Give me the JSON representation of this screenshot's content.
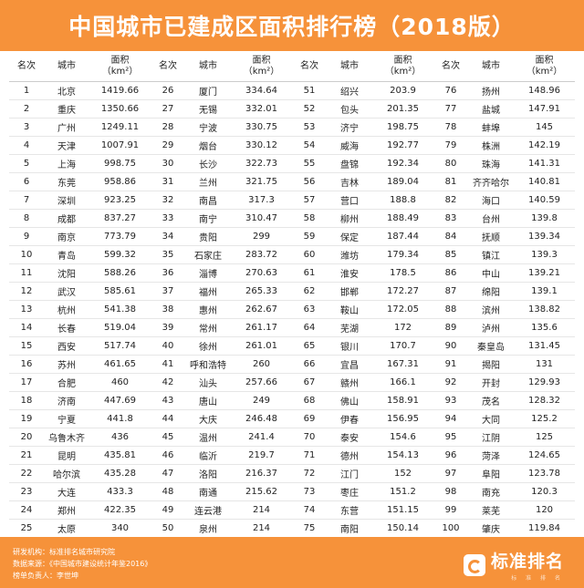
{
  "header": {
    "title": "中国城市已建成区面积排行榜（2018版）"
  },
  "table": {
    "headers": [
      "名次",
      "城市",
      "面积\n（km²）"
    ],
    "columns": [
      {
        "rows": [
          [
            "1",
            "北京",
            "1419.66"
          ],
          [
            "2",
            "重庆",
            "1350.66"
          ],
          [
            "3",
            "广州",
            "1249.11"
          ],
          [
            "4",
            "天津",
            "1007.91"
          ],
          [
            "5",
            "上海",
            "998.75"
          ],
          [
            "6",
            "东莞",
            "958.86"
          ],
          [
            "7",
            "深圳",
            "923.25"
          ],
          [
            "8",
            "成都",
            "837.27"
          ],
          [
            "9",
            "南京",
            "773.79"
          ],
          [
            "10",
            "青岛",
            "599.32"
          ],
          [
            "11",
            "沈阳",
            "588.26"
          ],
          [
            "12",
            "武汉",
            "585.61"
          ],
          [
            "13",
            "杭州",
            "541.38"
          ],
          [
            "14",
            "长春",
            "519.04"
          ],
          [
            "15",
            "西安",
            "517.74"
          ],
          [
            "16",
            "苏州",
            "461.65"
          ],
          [
            "17",
            "合肥",
            "460"
          ],
          [
            "18",
            "济南",
            "447.69"
          ],
          [
            "19",
            "宁夏",
            "441.8"
          ],
          [
            "20",
            "乌鲁木齐",
            "436"
          ],
          [
            "21",
            "昆明",
            "435.81"
          ],
          [
            "22",
            "哈尔滨",
            "435.28"
          ],
          [
            "23",
            "大连",
            "433.3"
          ],
          [
            "24",
            "郑州",
            "422.35"
          ],
          [
            "25",
            "太原",
            "340"
          ]
        ]
      },
      {
        "rows": [
          [
            "26",
            "厦门",
            "334.64"
          ],
          [
            "27",
            "无锡",
            "332.01"
          ],
          [
            "28",
            "宁波",
            "330.75"
          ],
          [
            "29",
            "烟台",
            "330.12"
          ],
          [
            "30",
            "长沙",
            "322.73"
          ],
          [
            "31",
            "兰州",
            "321.75"
          ],
          [
            "32",
            "南昌",
            "317.3"
          ],
          [
            "33",
            "南宁",
            "310.47"
          ],
          [
            "34",
            "贵阳",
            "299"
          ],
          [
            "35",
            "石家庄",
            "283.72"
          ],
          [
            "36",
            "淄博",
            "270.63"
          ],
          [
            "37",
            "福州",
            "265.33"
          ],
          [
            "38",
            "惠州",
            "262.67"
          ],
          [
            "39",
            "常州",
            "261.17"
          ],
          [
            "40",
            "徐州",
            "261.01"
          ],
          [
            "41",
            "呼和浩特",
            "260"
          ],
          [
            "42",
            "汕头",
            "257.66"
          ],
          [
            "43",
            "唐山",
            "249"
          ],
          [
            "44",
            "大庆",
            "246.48"
          ],
          [
            "45",
            "温州",
            "241.4"
          ],
          [
            "46",
            "临沂",
            "219.7"
          ],
          [
            "47",
            "洛阳",
            "216.37"
          ],
          [
            "48",
            "南通",
            "215.62"
          ],
          [
            "49",
            "连云港",
            "214"
          ],
          [
            "50",
            "泉州",
            "214"
          ]
        ]
      },
      {
        "rows": [
          [
            "51",
            "绍兴",
            "203.9"
          ],
          [
            "52",
            "包头",
            "201.35"
          ],
          [
            "53",
            "济宁",
            "198.75"
          ],
          [
            "54",
            "威海",
            "192.77"
          ],
          [
            "55",
            "盘锦",
            "192.34"
          ],
          [
            "56",
            "吉林",
            "189.04"
          ],
          [
            "57",
            "营口",
            "188.8"
          ],
          [
            "58",
            "柳州",
            "188.49"
          ],
          [
            "59",
            "保定",
            "187.44"
          ],
          [
            "60",
            "潍坊",
            "179.34"
          ],
          [
            "61",
            "淮安",
            "178.5"
          ],
          [
            "62",
            "邯郸",
            "172.27"
          ],
          [
            "63",
            "鞍山",
            "172.05"
          ],
          [
            "64",
            "芜湖",
            "172"
          ],
          [
            "65",
            "银川",
            "170.7"
          ],
          [
            "66",
            "宜昌",
            "167.31"
          ],
          [
            "67",
            "赣州",
            "166.1"
          ],
          [
            "68",
            "佛山",
            "158.91"
          ],
          [
            "69",
            "伊春",
            "156.95"
          ],
          [
            "70",
            "泰安",
            "154.6"
          ],
          [
            "71",
            "德州",
            "154.13"
          ],
          [
            "72",
            "江门",
            "152"
          ],
          [
            "73",
            "枣庄",
            "151.2"
          ],
          [
            "74",
            "东营",
            "151.15"
          ],
          [
            "75",
            "南阳",
            "150.14"
          ]
        ]
      },
      {
        "rows": [
          [
            "76",
            "扬州",
            "148.96"
          ],
          [
            "77",
            "盐城",
            "147.91"
          ],
          [
            "78",
            "蚌埠",
            "145"
          ],
          [
            "79",
            "株洲",
            "142.19"
          ],
          [
            "80",
            "珠海",
            "141.31"
          ],
          [
            "81",
            "齐齐哈尔",
            "140.81"
          ],
          [
            "82",
            "海口",
            "140.59"
          ],
          [
            "83",
            "台州",
            "139.8"
          ],
          [
            "84",
            "抚顺",
            "139.34"
          ],
          [
            "85",
            "镇江",
            "139.3"
          ],
          [
            "86",
            "中山",
            "139.21"
          ],
          [
            "87",
            "绵阳",
            "139.1"
          ],
          [
            "88",
            "滨州",
            "138.82"
          ],
          [
            "89",
            "泸州",
            "135.6"
          ],
          [
            "90",
            "秦皇岛",
            "131.45"
          ],
          [
            "91",
            "揭阳",
            "131"
          ],
          [
            "92",
            "开封",
            "129.93"
          ],
          [
            "93",
            "茂名",
            "128.32"
          ],
          [
            "94",
            "大同",
            "125.2"
          ],
          [
            "95",
            "江阴",
            "125"
          ],
          [
            "96",
            "菏泽",
            "124.65"
          ],
          [
            "97",
            "阜阳",
            "123.78"
          ],
          [
            "98",
            "南充",
            "120.3"
          ],
          [
            "99",
            "莱芜",
            "120"
          ],
          [
            "100",
            "肇庆",
            "119.84"
          ]
        ]
      }
    ]
  },
  "footer": {
    "lines": [
      "研发机构：标准排名城市研究院",
      "数据来源：《中国城市建设统计年鉴2016》",
      "榜单负责人：李世坤"
    ],
    "brand_name": "标准排名",
    "brand_sub": "标 准 排 名"
  },
  "colors": {
    "accent": "#f6923a"
  }
}
